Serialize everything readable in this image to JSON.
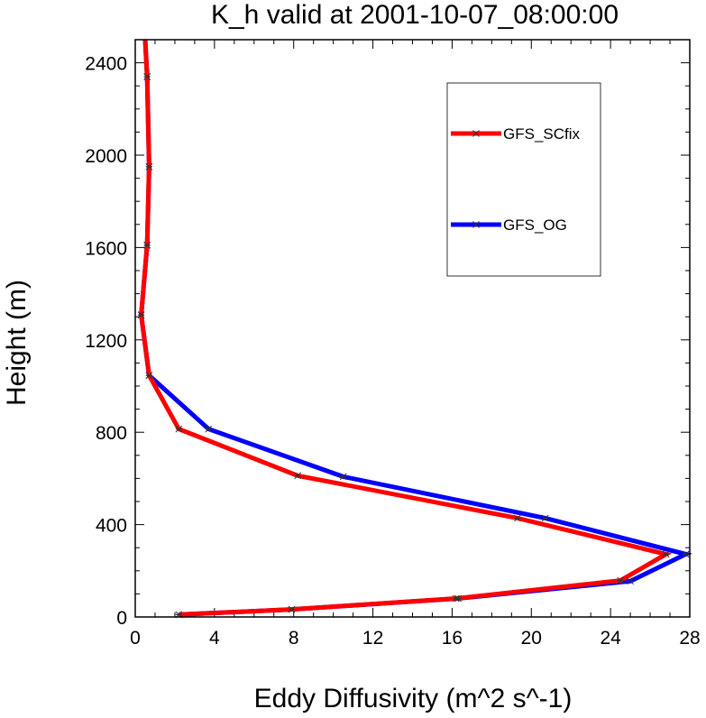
{
  "chart_data": {
    "type": "line",
    "title": "K_h valid at 2001-10-07_08:00:00",
    "xlabel": "Eddy Diffusivity (m^2 s^-1)",
    "ylabel": "Height (m)",
    "xlim": [
      0,
      28
    ],
    "ylim": [
      0,
      2500
    ],
    "xticks": [
      0,
      4,
      8,
      12,
      16,
      20,
      24,
      28
    ],
    "yticks": [
      0,
      400,
      800,
      1200,
      1600,
      2000,
      2400
    ],
    "grid": false,
    "legend_position": "top-right",
    "series": [
      {
        "name": "GFS_SCfix",
        "color": "#ff0000",
        "points": [
          {
            "x": 2.2,
            "y": 10
          },
          {
            "x": 7.9,
            "y": 33
          },
          {
            "x": 16.2,
            "y": 80
          },
          {
            "x": 24.5,
            "y": 158
          },
          {
            "x": 26.8,
            "y": 272
          },
          {
            "x": 19.3,
            "y": 428
          },
          {
            "x": 8.2,
            "y": 612
          },
          {
            "x": 2.2,
            "y": 814
          },
          {
            "x": 0.7,
            "y": 1046
          },
          {
            "x": 0.3,
            "y": 1308
          },
          {
            "x": 0.6,
            "y": 1610
          },
          {
            "x": 0.7,
            "y": 1950
          },
          {
            "x": 0.6,
            "y": 2340
          },
          {
            "x": 0.5,
            "y": 2500
          }
        ]
      },
      {
        "name": "GFS_OG",
        "color": "#0000ff",
        "points": [
          {
            "x": 2.2,
            "y": 10
          },
          {
            "x": 7.9,
            "y": 33
          },
          {
            "x": 16.3,
            "y": 80
          },
          {
            "x": 25.0,
            "y": 155
          },
          {
            "x": 27.8,
            "y": 272
          },
          {
            "x": 20.7,
            "y": 428
          },
          {
            "x": 10.5,
            "y": 608
          },
          {
            "x": 3.7,
            "y": 814
          },
          {
            "x": 0.7,
            "y": 1046
          },
          {
            "x": 0.3,
            "y": 1308
          },
          {
            "x": 0.6,
            "y": 1610
          },
          {
            "x": 0.7,
            "y": 1950
          },
          {
            "x": 0.6,
            "y": 2340
          },
          {
            "x": 0.5,
            "y": 2500
          }
        ]
      }
    ]
  }
}
